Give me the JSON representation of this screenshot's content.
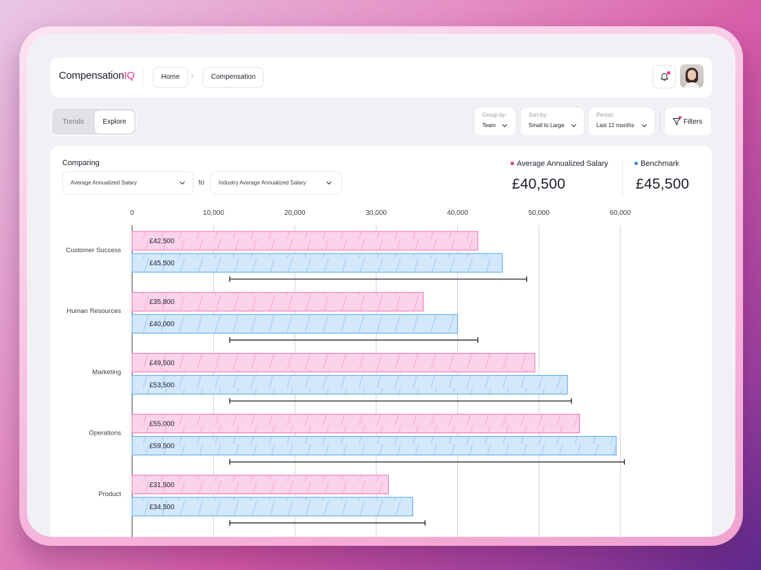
{
  "header": {
    "logo_main": "Compensation",
    "logo_accent": "IQ",
    "breadcrumb": [
      "Home",
      "Compensation"
    ]
  },
  "view_toggle": {
    "options": [
      "Trends",
      "Explore"
    ],
    "selected": "Explore"
  },
  "controls": {
    "group_by": {
      "label": "Group by:",
      "value": "Team"
    },
    "sort_by": {
      "label": "Sort by:",
      "value": "Small to Large"
    },
    "period": {
      "label": "Period:",
      "value": "Last 12 months"
    },
    "filters_label": "Filters"
  },
  "comparison": {
    "label": "Comparing",
    "metric_a": "Average Annualized Salary",
    "connector": "to",
    "metric_b": "Industry Average Annualized Salary"
  },
  "summary": {
    "series_a_name": "Average Annualized Salary",
    "series_a_value": "£40,500",
    "series_b_name": "Benchmark",
    "series_b_value": "£45,500"
  },
  "colors": {
    "accent": "#e0358f",
    "salary_fill": "#fbd3ea",
    "salary_stroke": "#ee6fb4",
    "benchmark_fill": "#d3e8fb",
    "benchmark_stroke": "#4fa3ea",
    "benchmark_dot": "#2b8fe0"
  },
  "chart_data": {
    "type": "bar",
    "orientation": "horizontal",
    "categories": [
      "Customer Success",
      "Human Resources",
      "Marketing",
      "Operations",
      "Product"
    ],
    "series": [
      {
        "name": "Average Annualized Salary",
        "values": [
          42500,
          35800,
          49500,
          55000,
          31500
        ],
        "labels": [
          "£42,500",
          "£35,800",
          "£49,500",
          "£55,000",
          "£31,500"
        ]
      },
      {
        "name": "Benchmark",
        "values": [
          45500,
          40000,
          53500,
          59500,
          34500
        ],
        "labels": [
          "£45,500",
          "£40,000",
          "£53,500",
          "£59,500",
          "£34,500"
        ]
      }
    ],
    "ranges": [
      [
        12000,
        48500
      ],
      [
        12000,
        42500
      ],
      [
        12000,
        54000
      ],
      [
        12000,
        60500
      ],
      [
        12000,
        36000
      ]
    ],
    "xticks": [
      0,
      10000,
      20000,
      30000,
      40000,
      50000,
      60000
    ],
    "xtick_labels": [
      "0",
      "10,000",
      "20,000",
      "30,000",
      "40,000",
      "50,000",
      "60,000"
    ],
    "xlim": [
      0,
      70000
    ],
    "grid": true,
    "xaxis_position": "top"
  }
}
